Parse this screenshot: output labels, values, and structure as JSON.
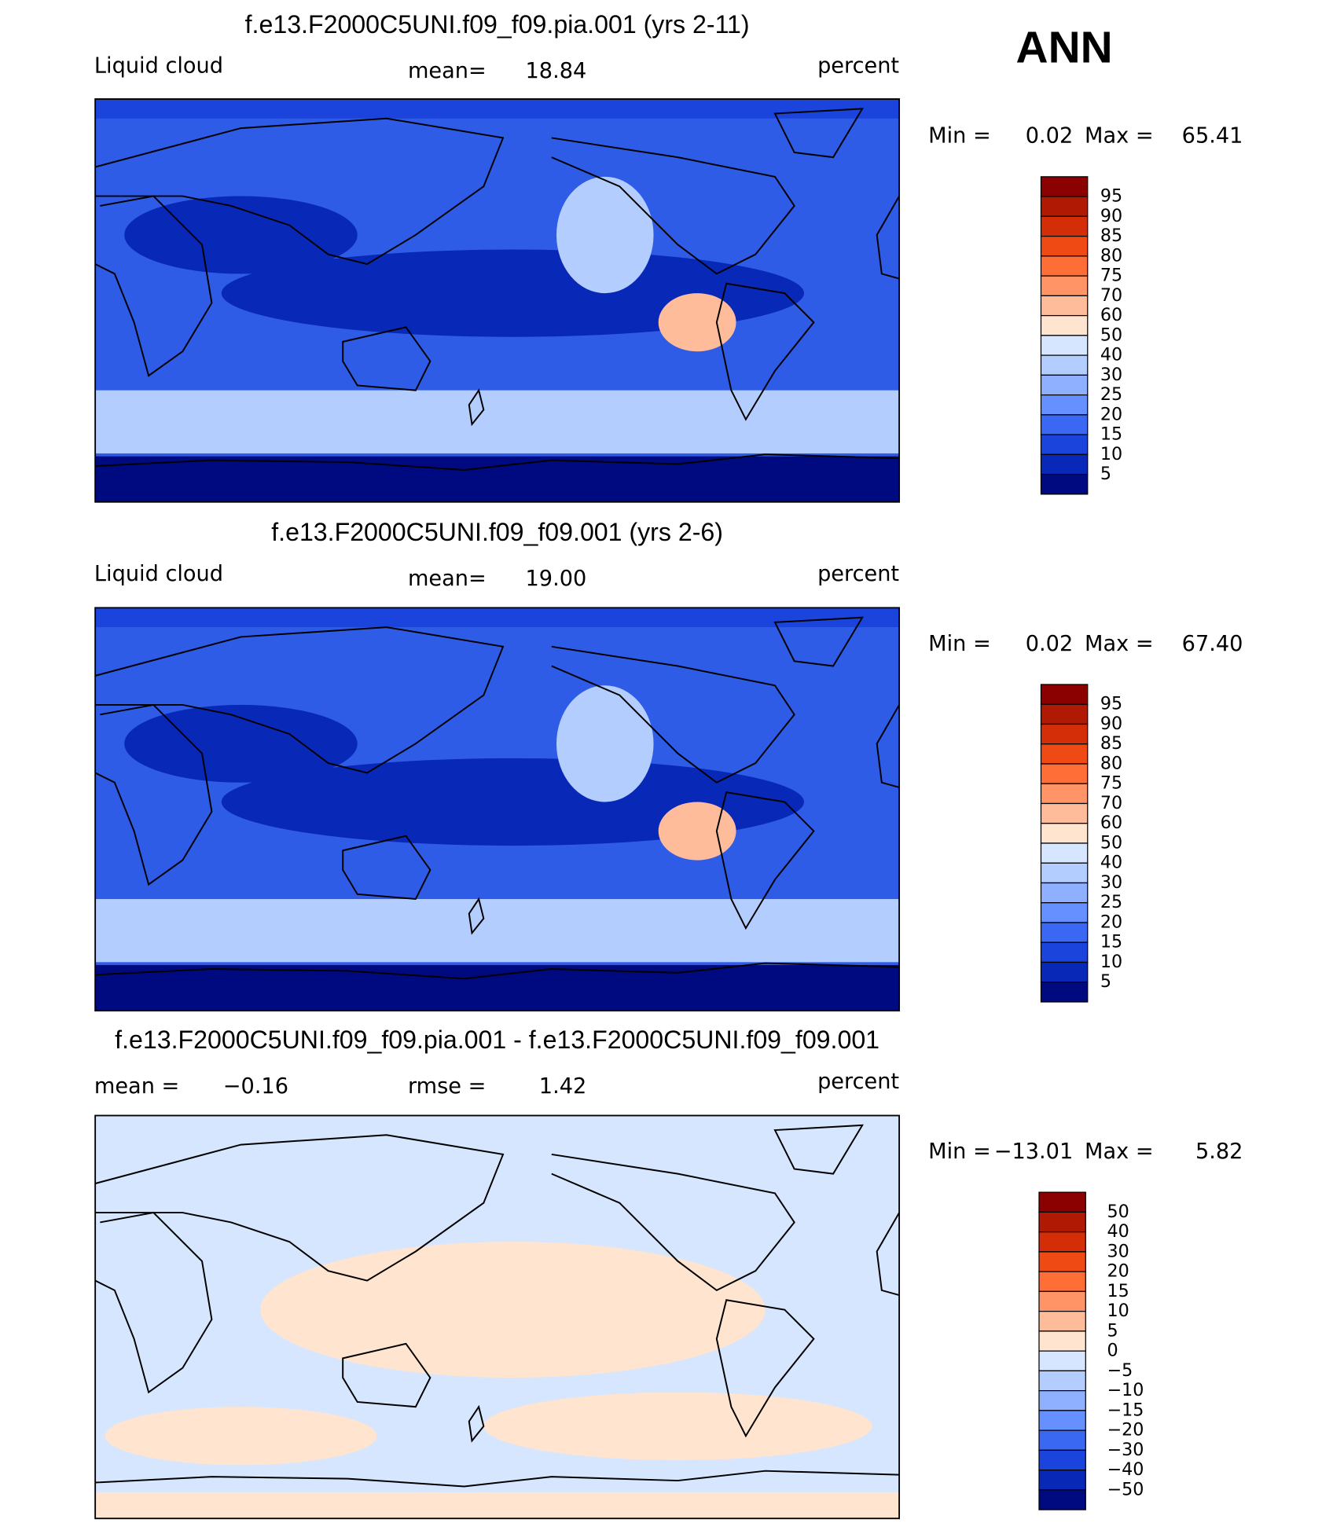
{
  "header": {
    "season": "ANN"
  },
  "panels": [
    {
      "title": "f.e13.F2000C5UNI.f09_f09.pia.001 (yrs 2-11)",
      "left_label": "Liquid cloud",
      "stat1_label": "mean=",
      "stat1_value": "18.84",
      "units": "percent",
      "min_label": "Min =",
      "min_value": "0.02",
      "max_label": "Max =",
      "max_value": "65.41",
      "colorbar": {
        "labels": [
          "95",
          "90",
          "85",
          "80",
          "75",
          "70",
          "60",
          "50",
          "40",
          "30",
          "25",
          "20",
          "15",
          "10",
          "5"
        ],
        "colors": [
          "#8b0000",
          "#b01a04",
          "#d42e08",
          "#ef4a14",
          "#ff6e36",
          "#ff9466",
          "#ffbc9a",
          "#ffe4d0",
          "#d6e6ff",
          "#b4cdff",
          "#8eb0ff",
          "#6690ff",
          "#3a68f2",
          "#1a44dc",
          "#0828b8",
          "#000a80"
        ]
      }
    },
    {
      "title": "f.e13.F2000C5UNI.f09_f09.001 (yrs 2-6)",
      "left_label": "Liquid cloud",
      "stat1_label": "mean=",
      "stat1_value": "19.00",
      "units": "percent",
      "min_label": "Min =",
      "min_value": "0.02",
      "max_label": "Max =",
      "max_value": "67.40",
      "colorbar": {
        "labels": [
          "95",
          "90",
          "85",
          "80",
          "75",
          "70",
          "60",
          "50",
          "40",
          "30",
          "25",
          "20",
          "15",
          "10",
          "5"
        ],
        "colors": [
          "#8b0000",
          "#b01a04",
          "#d42e08",
          "#ef4a14",
          "#ff6e36",
          "#ff9466",
          "#ffbc9a",
          "#ffe4d0",
          "#d6e6ff",
          "#b4cdff",
          "#8eb0ff",
          "#6690ff",
          "#3a68f2",
          "#1a44dc",
          "#0828b8",
          "#000a80"
        ]
      }
    },
    {
      "title": "f.e13.F2000C5UNI.f09_f09.pia.001 - f.e13.F2000C5UNI.f09_f09.001",
      "left_label": "mean =",
      "left_value": "−0.16",
      "stat1_label": "rmse =",
      "stat1_value": "1.42",
      "units": "percent",
      "min_label": "Min =",
      "min_value": "−13.01",
      "max_label": "Max =",
      "max_value": "5.82",
      "colorbar": {
        "labels": [
          "50",
          "40",
          "30",
          "20",
          "15",
          "10",
          "5",
          "0",
          "−5",
          "−10",
          "−15",
          "−20",
          "−30",
          "−40",
          "−50"
        ],
        "colors": [
          "#8b0000",
          "#b01a04",
          "#d42e08",
          "#ef4a14",
          "#ff6e36",
          "#ff9466",
          "#ffbc9a",
          "#ffe4d0",
          "#d6e6ff",
          "#b4cdff",
          "#8eb0ff",
          "#6690ff",
          "#3a68f2",
          "#1a44dc",
          "#0828b8",
          "#000a80"
        ]
      }
    }
  ]
}
